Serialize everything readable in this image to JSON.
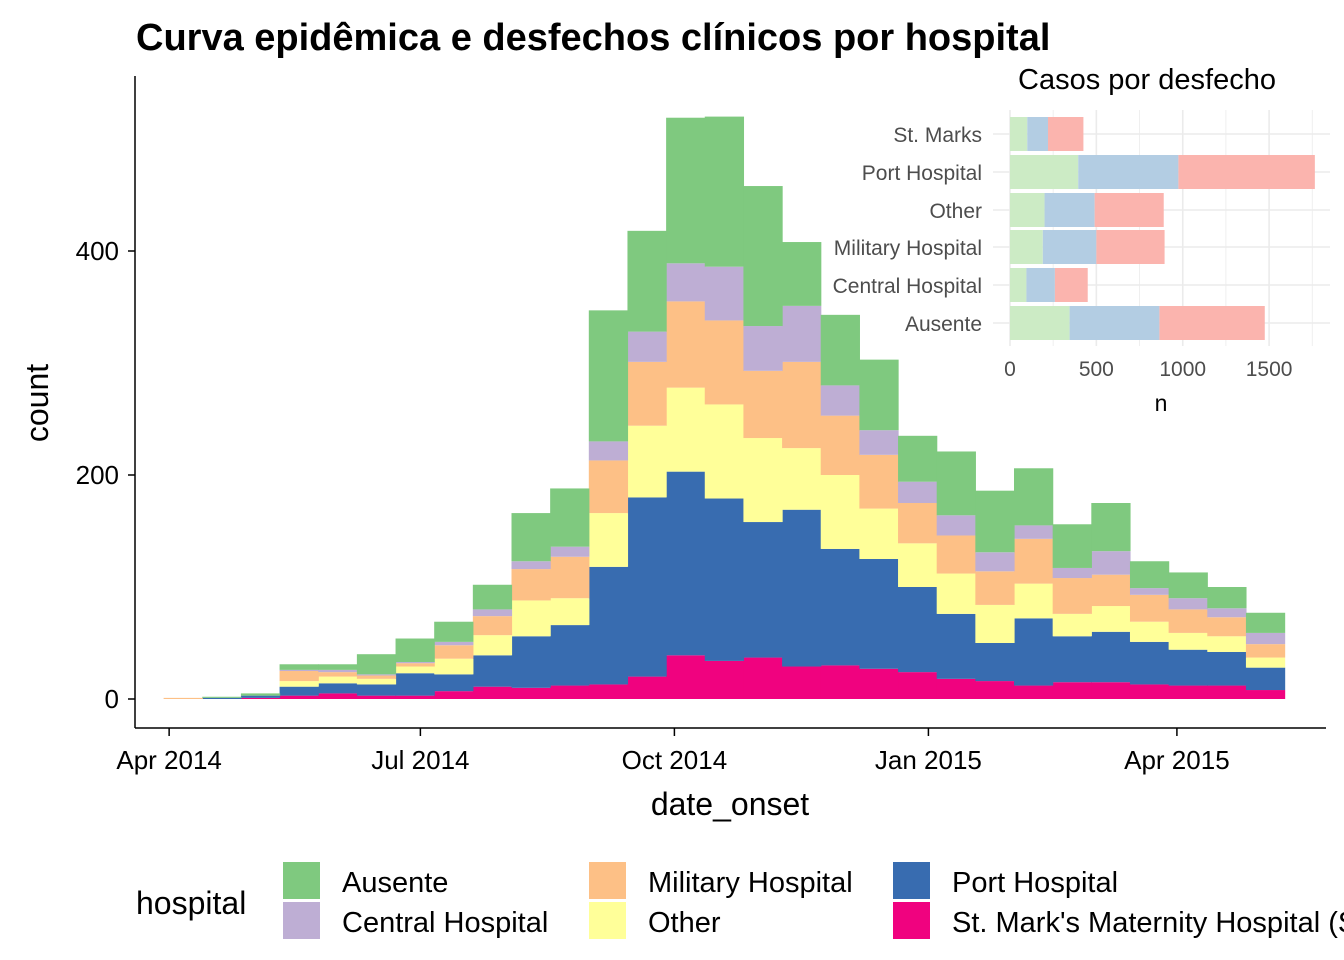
{
  "chart_data": [
    {
      "type": "histogram-stacked",
      "title": "Curva epidêmica e desfechos clínicos por hospital",
      "xlabel": "date_onset",
      "ylabel": "count",
      "ylim": [
        0,
        540
      ],
      "yticks": [
        0,
        200,
        400
      ],
      "xlim": [
        "2014-03-20",
        "2015-05-25"
      ],
      "xticks": [
        {
          "date": "2014-04-01",
          "label": "Apr 2014"
        },
        {
          "date": "2014-07-01",
          "label": "Jul 2014"
        },
        {
          "date": "2014-10-01",
          "label": "Oct 2014"
        },
        {
          "date": "2015-01-01",
          "label": "Jan 2015"
        },
        {
          "date": "2015-04-01",
          "label": "Apr 2015"
        }
      ],
      "bin_start": "2014-03-30",
      "bin_width_days": 14,
      "bins": [
        "2014-03-30",
        "2014-04-13",
        "2014-04-27",
        "2014-05-11",
        "2014-05-25",
        "2014-06-08",
        "2014-06-22",
        "2014-07-06",
        "2014-07-20",
        "2014-08-03",
        "2014-08-17",
        "2014-08-31",
        "2014-09-14",
        "2014-09-28",
        "2014-10-12",
        "2014-10-26",
        "2014-11-09",
        "2014-11-23",
        "2014-12-07",
        "2014-12-21",
        "2015-01-04",
        "2015-01-18",
        "2015-02-01",
        "2015-02-15",
        "2015-03-01",
        "2015-03-15",
        "2015-03-29",
        "2015-04-12",
        "2015-04-26"
      ],
      "series": [
        {
          "name": "St. Mark's Maternity Hospital (SMMH)",
          "color": "#f0027f",
          "values": [
            0,
            0,
            1,
            3,
            5,
            3,
            3,
            7,
            11,
            10,
            12,
            13,
            20,
            39,
            34,
            37,
            29,
            30,
            27,
            24,
            18,
            16,
            12,
            15,
            15,
            13,
            12,
            12,
            8
          ]
        },
        {
          "name": "Port Hospital",
          "color": "#386cb0",
          "values": [
            0,
            1,
            2,
            8,
            9,
            10,
            20,
            15,
            28,
            46,
            54,
            105,
            160,
            164,
            145,
            121,
            140,
            104,
            98,
            76,
            58,
            34,
            60,
            41,
            45,
            38,
            32,
            30,
            20
          ]
        },
        {
          "name": "Other",
          "color": "#ffff99",
          "values": [
            0,
            0,
            0,
            5,
            6,
            5,
            6,
            14,
            18,
            32,
            24,
            48,
            64,
            75,
            84,
            75,
            55,
            66,
            45,
            39,
            36,
            34,
            31,
            20,
            23,
            18,
            15,
            14,
            9
          ]
        },
        {
          "name": "Military Hospital",
          "color": "#fdc086",
          "values": [
            1,
            0,
            0,
            9,
            4,
            3,
            3,
            12,
            17,
            28,
            37,
            47,
            57,
            77,
            75,
            60,
            77,
            53,
            48,
            36,
            34,
            30,
            40,
            32,
            28,
            24,
            21,
            17,
            12
          ]
        },
        {
          "name": "Central Hospital",
          "color": "#beaed4",
          "values": [
            0,
            0,
            0,
            1,
            2,
            1,
            1,
            3,
            6,
            7,
            9,
            17,
            27,
            34,
            48,
            40,
            50,
            27,
            22,
            19,
            18,
            17,
            12,
            9,
            21,
            6,
            10,
            8,
            10
          ]
        },
        {
          "name": "Ausente",
          "color": "#7fc97f",
          "values": [
            0,
            1,
            2,
            5,
            5,
            18,
            21,
            18,
            22,
            43,
            52,
            117,
            90,
            130,
            134,
            125,
            57,
            63,
            63,
            41,
            57,
            55,
            51,
            39,
            43,
            24,
            23,
            19,
            18
          ]
        }
      ]
    },
    {
      "type": "bar-horizontal-stacked",
      "title": "Casos por desfecho",
      "xlabel": "n",
      "ylabel": "",
      "xlim": [
        0,
        1800
      ],
      "xticks": [
        0,
        500,
        1000,
        1500
      ],
      "categories": [
        "Ausente",
        "Central Hospital",
        "Military Hospital",
        "Other",
        "Port Hospital",
        "St. Marks"
      ],
      "series": [
        {
          "color": "#ccebc5",
          "values": [
            345,
            95,
            190,
            200,
            395,
            100
          ]
        },
        {
          "color": "#b3cde3",
          "values": [
            520,
            165,
            310,
            290,
            580,
            120
          ]
        },
        {
          "color": "#fbb4ae",
          "values": [
            610,
            190,
            395,
            400,
            790,
            205
          ]
        }
      ]
    }
  ],
  "legend": {
    "title": "hospital",
    "items": [
      {
        "label": "Ausente",
        "color": "#7fc97f"
      },
      {
        "label": "Central Hospital",
        "color": "#beaed4"
      },
      {
        "label": "Military Hospital",
        "color": "#fdc086"
      },
      {
        "label": "Other",
        "color": "#ffff99"
      },
      {
        "label": "Port Hospital",
        "color": "#386cb0"
      },
      {
        "label": "St. Mark's Maternity Hospital (SMMH)",
        "color": "#f0027f"
      }
    ]
  }
}
